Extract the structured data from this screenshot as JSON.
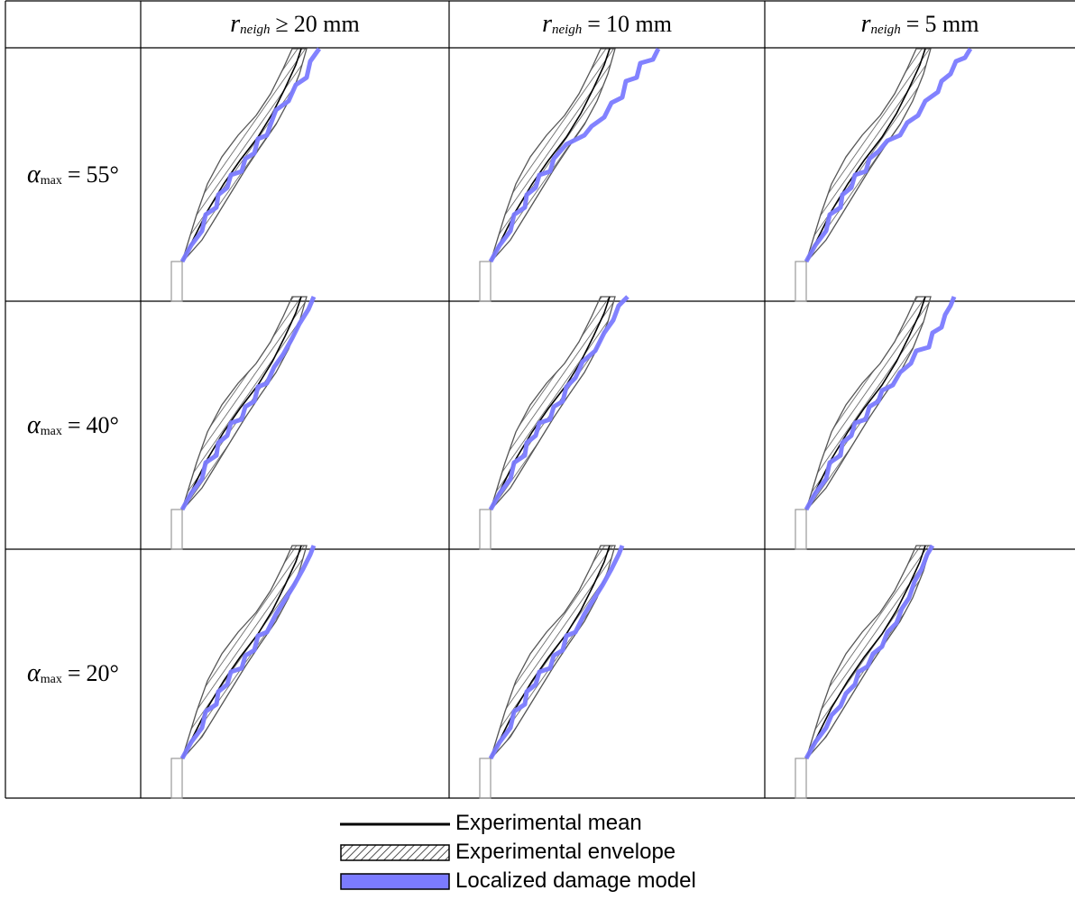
{
  "table": {
    "columns": [
      {
        "var": "r",
        "sub": "neigh",
        "relation": "≥",
        "value": "20 mm"
      },
      {
        "var": "r",
        "sub": "neigh",
        "relation": "=",
        "value": "10 mm"
      },
      {
        "var": "r",
        "sub": "neigh",
        "relation": "=",
        "value": "5 mm"
      }
    ],
    "rows": [
      {
        "var": "α",
        "sub": "max",
        "relation": "=",
        "value": "55°"
      },
      {
        "var": "α",
        "sub": "max",
        "relation": "=",
        "value": "40°"
      },
      {
        "var": "α",
        "sub": "max",
        "relation": "=",
        "value": "20°"
      }
    ]
  },
  "legend": {
    "items": [
      {
        "label": "Experimental mean",
        "kind": "line",
        "color": "#000000"
      },
      {
        "label": "Experimental envelope",
        "kind": "hatched",
        "color": "#000000"
      },
      {
        "label": "Localized damage model",
        "kind": "fill",
        "color": "#7b7bff"
      }
    ]
  },
  "colors": {
    "grid": "#000000",
    "envelope": "#555555",
    "model": "#7b7bff",
    "notch": "#999999"
  }
}
